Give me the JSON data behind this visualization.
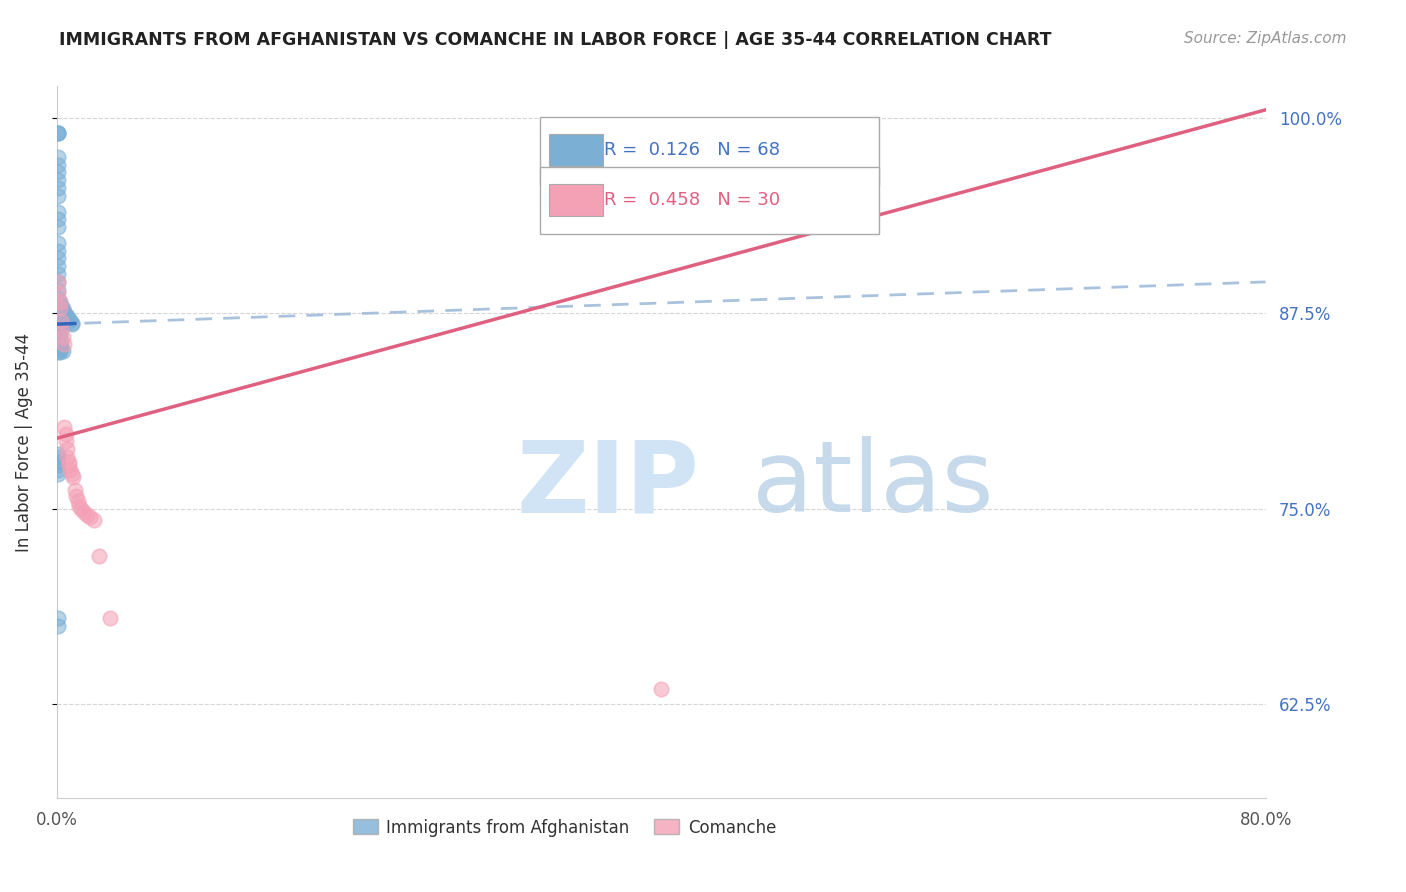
{
  "title": "IMMIGRANTS FROM AFGHANISTAN VS COMANCHE IN LABOR FORCE | AGE 35-44 CORRELATION CHART",
  "source": "Source: ZipAtlas.com",
  "ylabel": "In Labor Force | Age 35-44",
  "xlim": [
    0.0,
    0.8
  ],
  "ylim": [
    0.565,
    1.02
  ],
  "xticks": [
    0.0,
    0.1,
    0.2,
    0.3,
    0.4,
    0.5,
    0.6,
    0.7,
    0.8
  ],
  "xticklabels": [
    "0.0%",
    "",
    "",
    "",
    "",
    "",
    "",
    "",
    "80.0%"
  ],
  "yticks": [
    0.625,
    0.75,
    0.875,
    1.0
  ],
  "yticklabels": [
    "62.5%",
    "75.0%",
    "87.5%",
    "100.0%"
  ],
  "grid_color": "#cccccc",
  "bg_color": "#ffffff",
  "afghanistan_color": "#7bafd4",
  "afghanistan_edge": "#5590bb",
  "comanche_color": "#f4a0b5",
  "comanche_edge": "#e07090",
  "afghanistan_line_color": "#3366bb",
  "comanche_line_color": "#e06080",
  "R_afg": 0.126,
  "N_afg": 68,
  "R_com": 0.458,
  "N_com": 30,
  "afg_line_x0": 0.0,
  "afg_line_y0": 0.868,
  "afg_line_x1": 0.8,
  "afg_line_y1": 0.895,
  "com_line_x0": 0.0,
  "com_line_y0": 0.795,
  "com_line_x1": 0.8,
  "com_line_y1": 1.005,
  "afghanistan_x": [
    0.001,
    0.001,
    0.001,
    0.001,
    0.001,
    0.001,
    0.001,
    0.001,
    0.001,
    0.001,
    0.001,
    0.001,
    0.001,
    0.001,
    0.001,
    0.001,
    0.001,
    0.001,
    0.001,
    0.001,
    0.002,
    0.002,
    0.002,
    0.002,
    0.002,
    0.002,
    0.002,
    0.002,
    0.002,
    0.002,
    0.003,
    0.003,
    0.003,
    0.003,
    0.003,
    0.003,
    0.004,
    0.004,
    0.004,
    0.004,
    0.005,
    0.005,
    0.005,
    0.006,
    0.006,
    0.007,
    0.008,
    0.009,
    0.01,
    0.01,
    0.001,
    0.001,
    0.001,
    0.001,
    0.002,
    0.002,
    0.002,
    0.003,
    0.003,
    0.004,
    0.001,
    0.001,
    0.001,
    0.001,
    0.001,
    0.001,
    0.001,
    0.001
  ],
  "afghanistan_y": [
    0.99,
    0.99,
    0.99,
    0.975,
    0.97,
    0.965,
    0.96,
    0.955,
    0.95,
    0.94,
    0.935,
    0.93,
    0.92,
    0.915,
    0.91,
    0.905,
    0.9,
    0.895,
    0.89,
    0.885,
    0.882,
    0.88,
    0.878,
    0.875,
    0.873,
    0.87,
    0.868,
    0.865,
    0.862,
    0.86,
    0.878,
    0.875,
    0.872,
    0.87,
    0.868,
    0.865,
    0.878,
    0.875,
    0.873,
    0.87,
    0.876,
    0.874,
    0.872,
    0.874,
    0.872,
    0.873,
    0.871,
    0.87,
    0.869,
    0.868,
    0.857,
    0.855,
    0.852,
    0.85,
    0.855,
    0.852,
    0.85,
    0.855,
    0.852,
    0.851,
    0.785,
    0.783,
    0.78,
    0.778,
    0.775,
    0.772,
    0.68,
    0.675
  ],
  "comanche_x": [
    0.001,
    0.001,
    0.002,
    0.002,
    0.003,
    0.003,
    0.004,
    0.005,
    0.005,
    0.006,
    0.006,
    0.007,
    0.007,
    0.008,
    0.008,
    0.009,
    0.01,
    0.011,
    0.012,
    0.013,
    0.014,
    0.015,
    0.016,
    0.018,
    0.02,
    0.022,
    0.025,
    0.028,
    0.035,
    0.4
  ],
  "comanche_y": [
    0.895,
    0.888,
    0.882,
    0.878,
    0.87,
    0.865,
    0.86,
    0.855,
    0.802,
    0.798,
    0.793,
    0.788,
    0.783,
    0.78,
    0.778,
    0.775,
    0.772,
    0.77,
    0.762,
    0.758,
    0.755,
    0.752,
    0.75,
    0.748,
    0.746,
    0.745,
    0.743,
    0.72,
    0.68,
    0.635
  ]
}
